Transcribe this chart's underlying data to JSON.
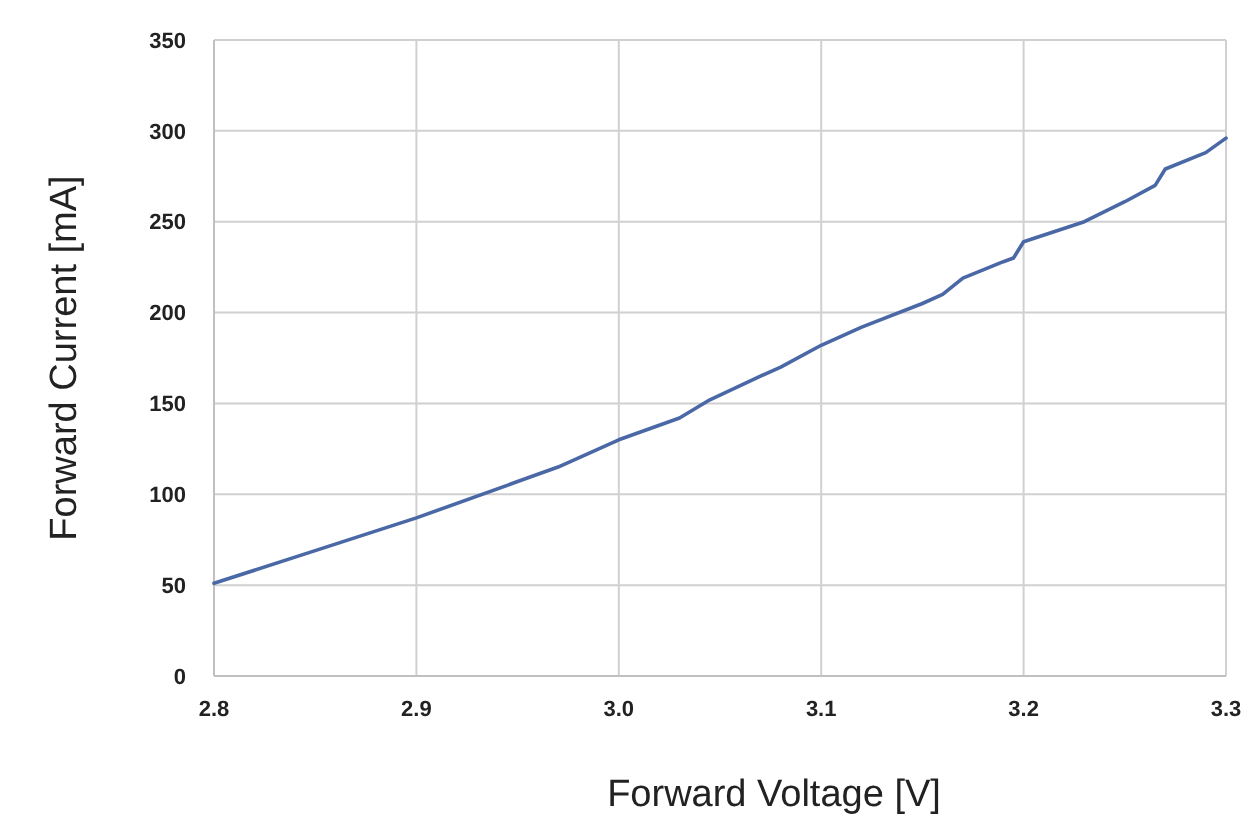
{
  "chart_data": {
    "type": "line",
    "xlabel": "Forward Voltage [V]",
    "ylabel": "Forward Current [mA]",
    "xlim": [
      2.8,
      3.3
    ],
    "xticks": [
      2.8,
      2.9,
      {
        "value": 3.0,
        "label": "3.0"
      },
      3.1,
      3.2,
      3.3
    ],
    "ylim": [
      0,
      350
    ],
    "yticks": [
      0,
      50,
      100,
      150,
      200,
      250,
      300,
      350
    ],
    "grid": true,
    "series": [
      {
        "color": "#4a68a6",
        "x": [
          2.8,
          2.85,
          2.9,
          2.95,
          2.97,
          3.0,
          3.03,
          3.045,
          3.07,
          3.08,
          3.1,
          3.12,
          3.15,
          3.16,
          3.17,
          3.19,
          3.195,
          3.2,
          3.23,
          3.25,
          3.265,
          3.27,
          3.29,
          3.3
        ],
        "values": [
          51,
          69,
          87,
          107,
          115,
          130,
          142,
          152,
          165,
          170,
          182,
          192,
          205,
          210,
          219,
          228,
          230,
          239,
          250,
          261,
          270,
          279,
          288,
          296
        ]
      }
    ]
  }
}
